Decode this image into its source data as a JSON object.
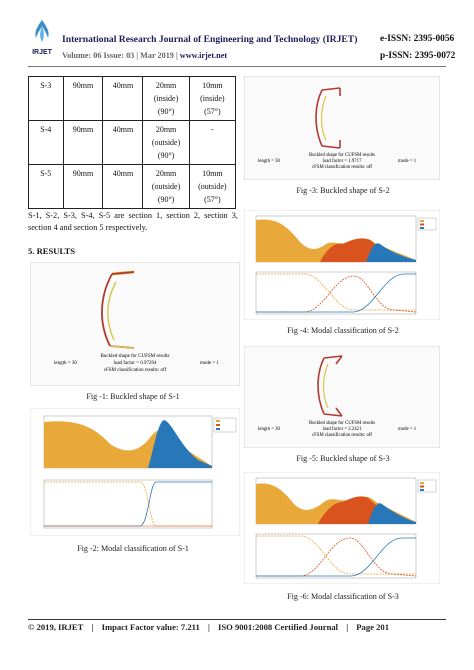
{
  "header": {
    "journal_title": "International Research Journal of Engineering and Technology (IRJET)",
    "e_issn": "e-ISSN: 2395-0056",
    "volume": "Volume: 06 Issue: 03 | Mar 2019",
    "url": "www.irjet.net",
    "p_issn": "p-ISSN: 2395-0072",
    "logo_text": "IRJET"
  },
  "table": {
    "rows": [
      {
        "id": "S-3",
        "a": "90mm",
        "b": "40mm",
        "c": [
          "20mm",
          "(inside)",
          "(90°)"
        ],
        "d": [
          "10mm",
          "(inside)",
          "(57°)"
        ]
      },
      {
        "id": "S-4",
        "a": "90mm",
        "b": "40mm",
        "c": [
          "20mm",
          "(outside)",
          "(90°)"
        ],
        "d": [
          "-"
        ]
      },
      {
        "id": "S-5",
        "a": "90mm",
        "b": "40mm",
        "c": [
          "20mm",
          "(outside)",
          "(90°)"
        ],
        "d": [
          "10mm",
          "(outside)",
          "(57°)"
        ]
      }
    ]
  },
  "body_text": {
    "sections_sentence": "S-1, S-2, S-3, S-4, S-5 are section 1, section 2, section 3, section 4 and section 5 respectively.",
    "results_heading": "5. RESULTS"
  },
  "figures": {
    "buckled_common": {
      "title": "Buckled shape for CUFSM results",
      "classification": "cFSM classification results: off",
      "length": "length = 30",
      "mode": "mode = 1"
    },
    "fig1": {
      "caption": "Fig -1: Buckled shape of S-1",
      "load": "load factor = 0.97294"
    },
    "fig2": {
      "caption": "Fig -2: Modal classification of S-1"
    },
    "fig3": {
      "caption": "Fig -3: Buckled shape of S-2",
      "load": "load factor = 1.9717"
    },
    "fig4": {
      "caption": "Fig -4: Modal classification of S-2"
    },
    "fig5": {
      "caption": "Fig -5: Buckled shape of S-3",
      "load": "load factor = 2.2421"
    },
    "fig6": {
      "caption": "Fig -6: Modal classification of S-3"
    }
  },
  "footer": {
    "copyright": "© 2019, IRJET",
    "sep": "|",
    "impact": "Impact Factor value: 7.211",
    "iso": "ISO 9001:2008 Certified Journal",
    "page": "Page 201"
  },
  "colors": {
    "brand_blue": "#1d1d5a",
    "global": "#e9a93a",
    "distortional": "#d9531e",
    "local": "#2877b8",
    "section_line": "#b03a2e",
    "section_yellow": "#d8c64a"
  }
}
